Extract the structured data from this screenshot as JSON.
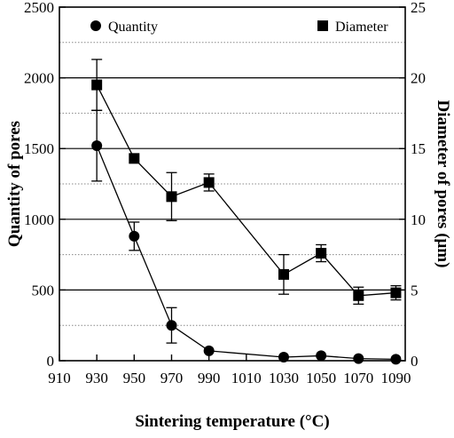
{
  "chart_data": {
    "type": "line",
    "xlabel": "Sintering temperature (°C)",
    "x_ticks": [
      910,
      930,
      950,
      970,
      990,
      1010,
      1030,
      1050,
      1070,
      1090
    ],
    "xlim": [
      910,
      1095
    ],
    "grid": "horizontal",
    "legend_position": "top",
    "y_left": {
      "label": "Quantity of pores",
      "lim": [
        0,
        2500
      ],
      "ticks": [
        0,
        500,
        1000,
        1500,
        2000,
        2500
      ],
      "tick_labels": [
        "0",
        "500",
        "1000",
        "1500",
        "2000",
        "2500"
      ]
    },
    "y_right": {
      "label": "Diameter of pores (μm)",
      "lim": [
        0,
        25
      ],
      "ticks": [
        0,
        5,
        10,
        15,
        20,
        25
      ],
      "tick_labels": [
        "0",
        "5",
        "10",
        "15",
        "20",
        "25"
      ]
    },
    "series": [
      {
        "name": "Quantity",
        "axis": "left",
        "marker": "circle",
        "x": [
          930,
          950,
          970,
          990,
          1030,
          1050,
          1070,
          1090
        ],
        "y": [
          1520,
          880,
          250,
          70,
          25,
          35,
          15,
          10
        ],
        "err": [
          250,
          100,
          125,
          0,
          0,
          0,
          0,
          0
        ]
      },
      {
        "name": "Diameter",
        "axis": "right",
        "marker": "square",
        "x": [
          930,
          950,
          970,
          990,
          1030,
          1050,
          1070,
          1090
        ],
        "y": [
          19.5,
          14.3,
          11.6,
          12.6,
          6.1,
          7.6,
          4.6,
          4.8
        ],
        "err": [
          1.8,
          0,
          1.7,
          0.6,
          1.4,
          0.6,
          0.6,
          0.5
        ]
      }
    ]
  }
}
